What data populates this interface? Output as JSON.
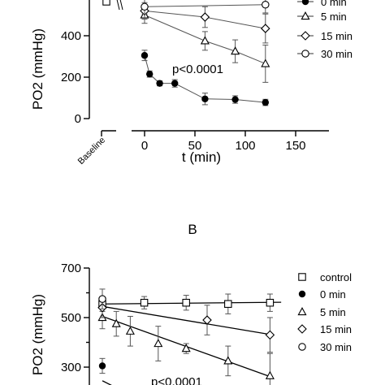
{
  "chart_data": [
    {
      "panel": "A",
      "type": "scatter",
      "xlabel": "t (min)",
      "ylabel": "PO2 (mmHg)",
      "xlim": [
        0,
        150
      ],
      "ylim": [
        0,
        600
      ],
      "xticks": [
        0,
        50,
        100,
        150
      ],
      "yticks": [
        0,
        200,
        400
      ],
      "extra_x_tick_label": "Baseline",
      "annotation": "p<0.0001",
      "legend_position": "top-right",
      "legend": [
        "0 min",
        "5 min",
        "15 min",
        "30 min"
      ],
      "series": [
        {
          "name": "0 min",
          "marker": "filled-circle",
          "x": [
            0,
            5,
            15,
            30,
            60,
            90,
            120
          ],
          "y": [
            305,
            215,
            170,
            170,
            95,
            92,
            78
          ],
          "err": [
            25,
            15,
            12,
            18,
            28,
            18,
            15
          ]
        },
        {
          "name": "5 min",
          "marker": "triangle",
          "x": [
            0,
            60,
            90,
            120
          ],
          "y": [
            500,
            375,
            325,
            265
          ],
          "err": [
            40,
            45,
            55,
            90
          ]
        },
        {
          "name": "15 min",
          "marker": "diamond",
          "x": [
            0,
            60,
            120
          ],
          "y": [
            520,
            490,
            435
          ],
          "err": [
            40,
            50,
            70
          ]
        },
        {
          "name": "30 min",
          "marker": "open-circle",
          "x": [
            0,
            120
          ],
          "y": [
            540,
            550
          ],
          "err": [
            35,
            40
          ]
        }
      ]
    },
    {
      "panel": "B",
      "type": "scatter",
      "title": "B",
      "ylabel": "PO2 (mmHg)",
      "ylim": [
        250,
        700
      ],
      "yticks": [
        300,
        500,
        700
      ],
      "annotation": "p<0.0001",
      "legend_position": "right",
      "legend": [
        "control",
        "0 min",
        "5 min",
        "15 min",
        "30 min"
      ],
      "series": [
        {
          "name": "control",
          "marker": "open-square",
          "x": [
            0,
            30,
            60,
            90,
            120
          ],
          "y": [
            555,
            560,
            560,
            555,
            560
          ],
          "err": [
            30,
            25,
            30,
            40,
            35
          ]
        },
        {
          "name": "0 min",
          "marker": "filled-circle",
          "x": [
            0
          ],
          "y": [
            305
          ],
          "err": [
            30
          ]
        },
        {
          "name": "5 min",
          "marker": "triangle",
          "x": [
            0,
            10,
            20,
            40,
            60,
            90,
            120
          ],
          "y": [
            500,
            475,
            445,
            395,
            375,
            325,
            265
          ],
          "err": [
            45,
            50,
            60,
            70,
            20,
            60,
            90
          ]
        },
        {
          "name": "15 min",
          "marker": "diamond",
          "x": [
            0,
            75,
            120
          ],
          "y": [
            540,
            490,
            430
          ],
          "err": [
            40,
            60,
            70
          ]
        },
        {
          "name": "30 min",
          "marker": "open-circle",
          "x": [
            0
          ],
          "y": [
            575
          ],
          "err": [
            40
          ]
        }
      ]
    }
  ]
}
